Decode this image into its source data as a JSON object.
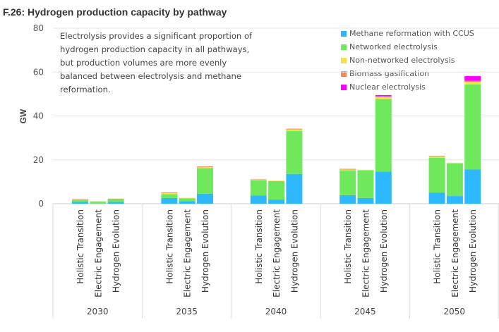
{
  "chart_data": {
    "type": "bar",
    "stacked": true,
    "title": "F.26: Hydrogen production capacity by pathway",
    "annotation": "Electrolysis provides a significant proportion of hydrogen production capacity in all pathways, but production volumes are more evenly balanced between electrolysis and methane reformation.",
    "ylabel": "GW",
    "ylim": [
      0,
      80
    ],
    "yticks": [
      "0",
      "20",
      "40",
      "60",
      "80"
    ],
    "grid": true,
    "legend_position": "top-right",
    "years": [
      "2030",
      "2035",
      "2040",
      "2045",
      "2050"
    ],
    "pathways": [
      "Holistic Transition",
      "Electric Engagement",
      "Hydrogen Evolution"
    ],
    "series": [
      {
        "name": "Methane reformation with CCUS",
        "color": "#2eb8ff",
        "values": [
          [
            0.8,
            0.1,
            0.8
          ],
          [
            2.6,
            1.2,
            4.6
          ],
          [
            3.8,
            1.9,
            13.6
          ],
          [
            3.9,
            2.6,
            14.6
          ],
          [
            5.1,
            3.5,
            15.6
          ]
        ]
      },
      {
        "name": "Networked electrolysis",
        "color": "#6fe85c",
        "values": [
          [
            0.8,
            0.8,
            1.3
          ],
          [
            1.7,
            1.2,
            11.6
          ],
          [
            6.8,
            8.4,
            19.6
          ],
          [
            11.3,
            12.6,
            33.1
          ],
          [
            15.8,
            14.9,
            38.8
          ]
        ]
      },
      {
        "name": "Non-networked electrolysis",
        "color": "#f5e050",
        "values": [
          [
            0.2,
            0.3,
            0.0
          ],
          [
            0.6,
            0.3,
            0.5
          ],
          [
            0.3,
            0.2,
            0.7
          ],
          [
            0.4,
            0.3,
            1.2
          ],
          [
            0.6,
            0.3,
            1.2
          ]
        ]
      },
      {
        "name": "Biomass gasification",
        "color": "#f08a5a",
        "values": [
          [
            0.3,
            0.0,
            0.2
          ],
          [
            0.3,
            0.0,
            0.3
          ],
          [
            0.2,
            0.0,
            0.3
          ],
          [
            0.3,
            0.0,
            0.0
          ],
          [
            0.3,
            0.0,
            0.4
          ]
        ]
      },
      {
        "name": "Nuclear electrolysis",
        "color": "#ff00ff",
        "values": [
          [
            0,
            0,
            0
          ],
          [
            0,
            0,
            0
          ],
          [
            0,
            0,
            0
          ],
          [
            0,
            0,
            0.6
          ],
          [
            0,
            0,
            2.2
          ]
        ]
      }
    ]
  }
}
